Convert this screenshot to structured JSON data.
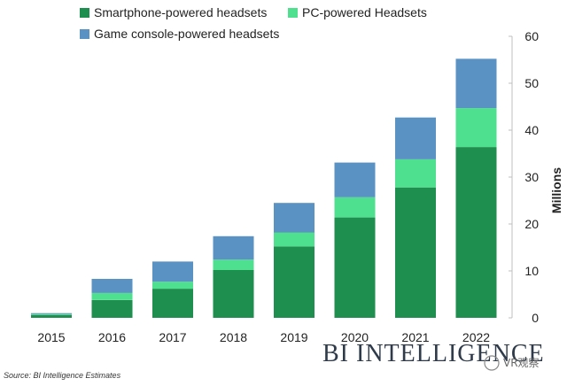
{
  "chart_data": {
    "type": "bar",
    "stacked": true,
    "categories": [
      "2015",
      "2016",
      "2017",
      "2018",
      "2019",
      "2020",
      "2021",
      "2022"
    ],
    "series": [
      {
        "name": "Smartphone-powered headsets",
        "values": [
          0.6,
          3.8,
          6.2,
          10.2,
          15.2,
          21.4,
          27.8,
          36.4
        ],
        "color": "#1e8f4e"
      },
      {
        "name": "PC-powered Headsets",
        "values": [
          0.2,
          1.5,
          1.5,
          2.2,
          3.0,
          4.3,
          6.0,
          8.3
        ],
        "color": "#4fe08f"
      },
      {
        "name": "Game console-powered headsets",
        "values": [
          0.2,
          3.0,
          4.3,
          5.0,
          6.3,
          7.4,
          8.9,
          10.5
        ],
        "color": "#5b92c4"
      }
    ],
    "ylim": [
      0,
      60
    ],
    "yticks": [
      0,
      10,
      20,
      30,
      40,
      50,
      60
    ],
    "ylabel": "Millions",
    "xlabel": "",
    "legend_position": "top-left",
    "source": "Source: BI Intelligence Estimates"
  },
  "branding": {
    "logo": "BI INTELLIGENCE",
    "watermark": "VR观察"
  }
}
